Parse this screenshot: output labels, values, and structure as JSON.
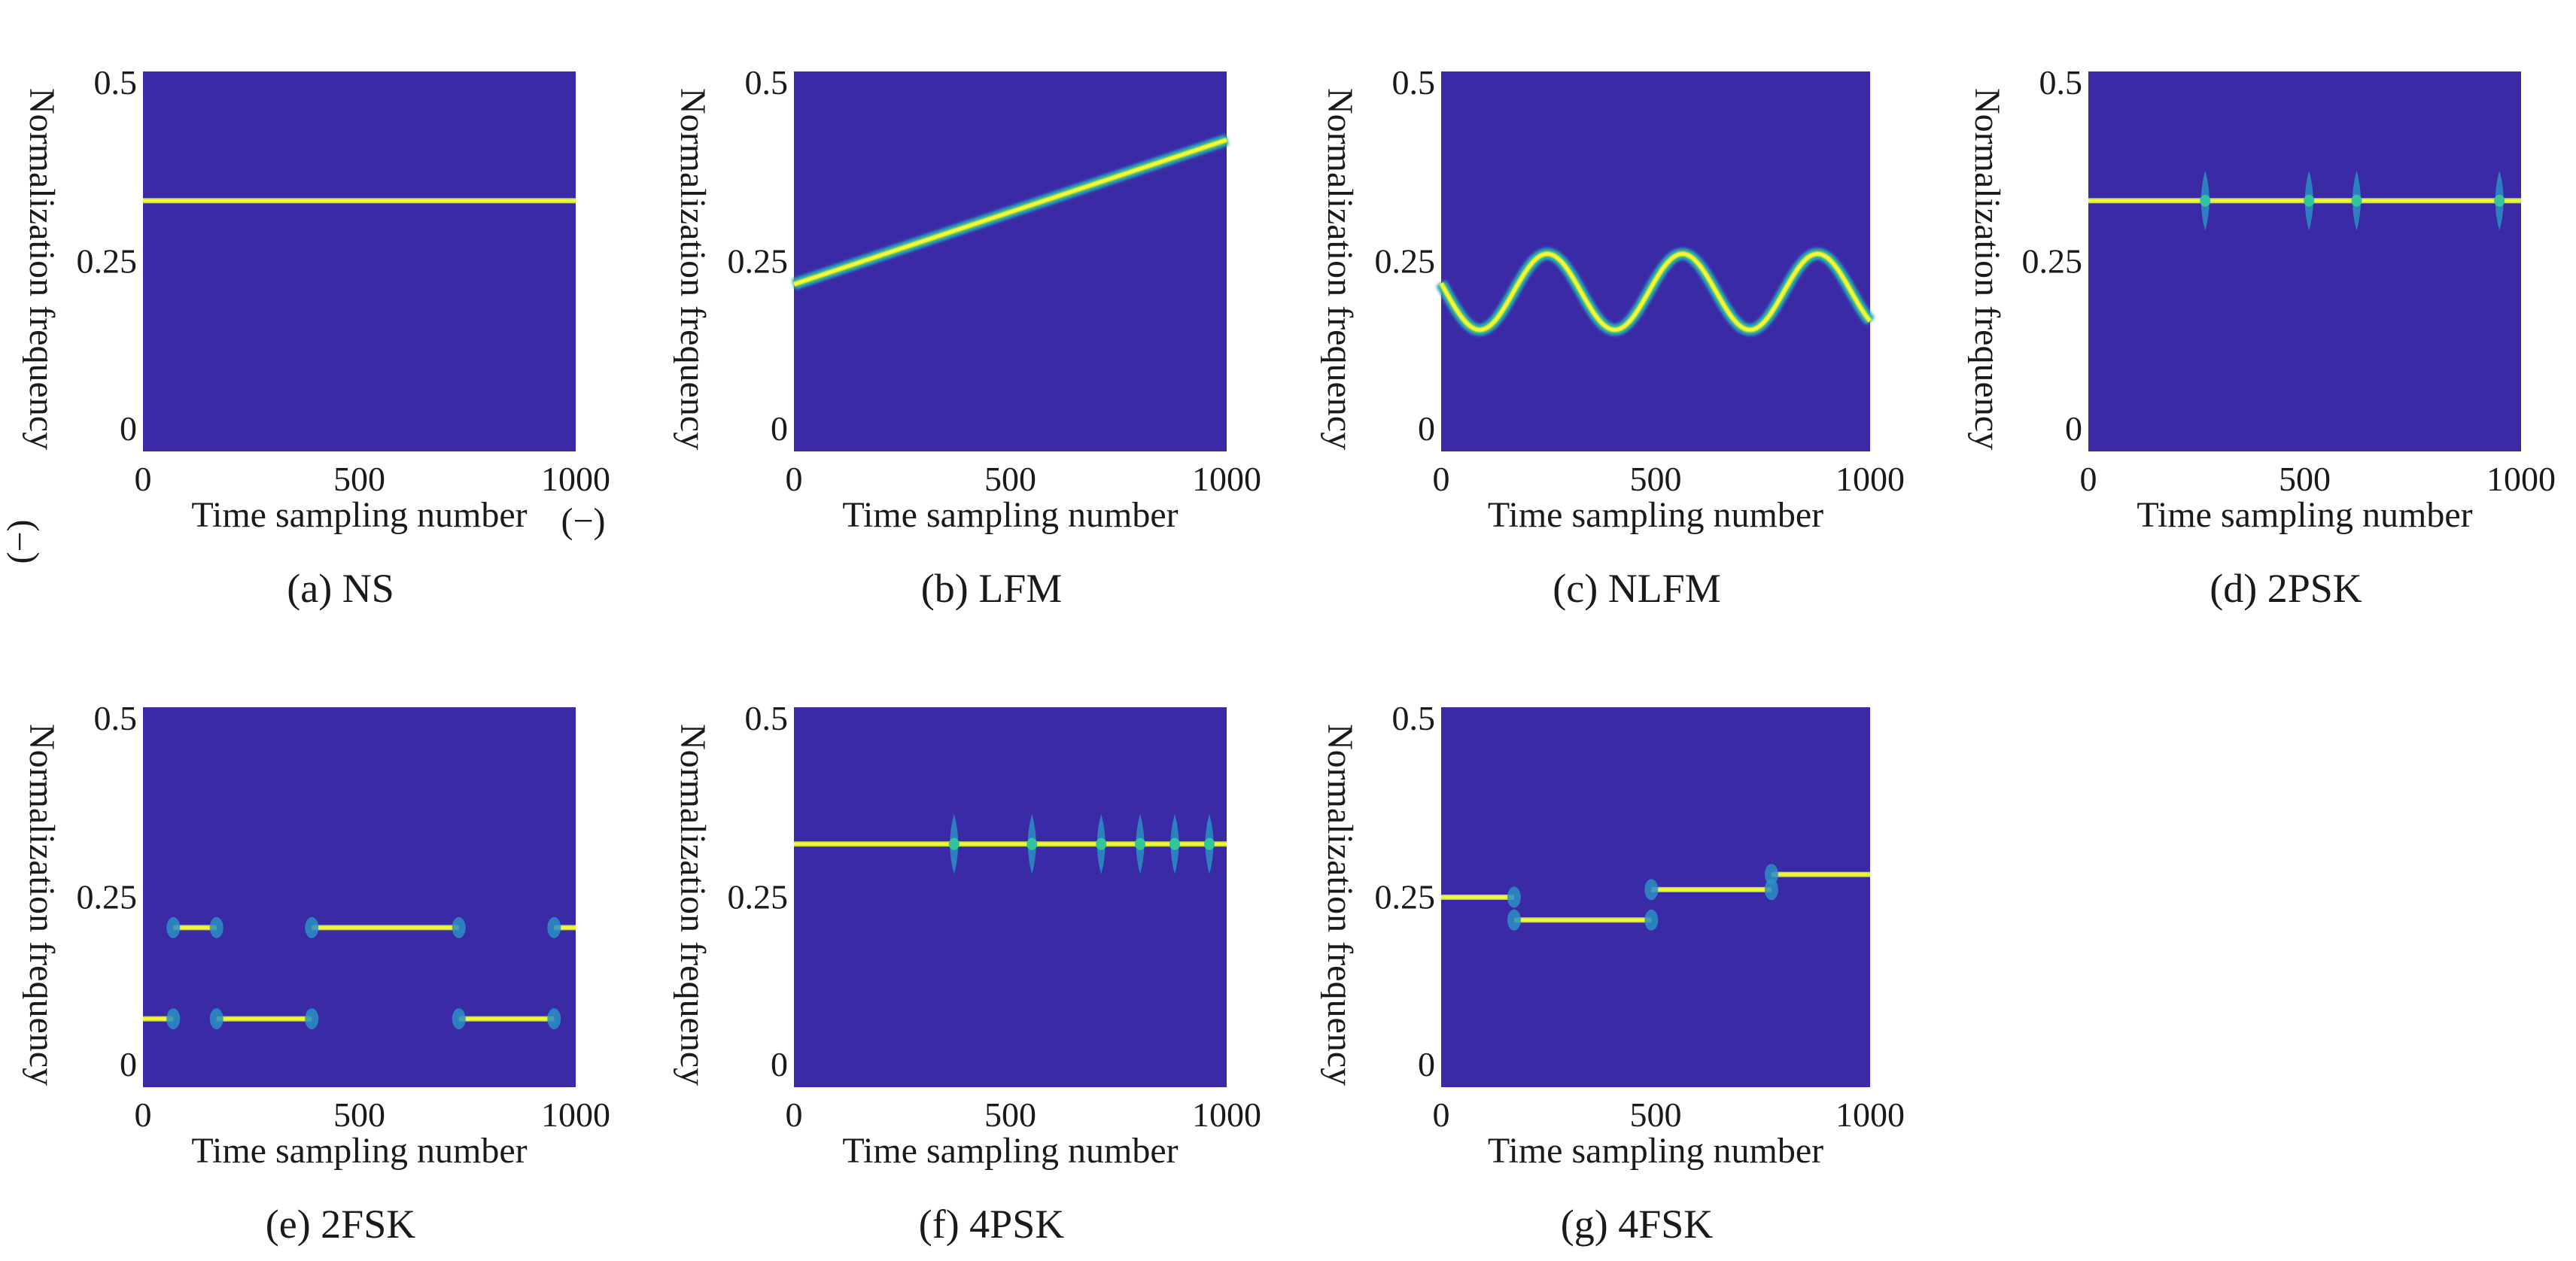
{
  "figure": {
    "panel_background": "#3b2aa6",
    "glow_colors": [
      "#2a8fc4",
      "#32c49a",
      "#b3e13c",
      "#f7f53a"
    ],
    "y_units_note": "(−)",
    "x_units_note": "(−)"
  },
  "chart_data": [
    {
      "type": "heatmap",
      "caption": "(a) NS",
      "xlabel": "Time sampling number",
      "ylabel": "Normalization frequency",
      "xlim": [
        0,
        1000
      ],
      "ylim": [
        0,
        0.5
      ],
      "xticks": [
        "0",
        "500",
        "1000"
      ],
      "yticks": [
        "0",
        "0.25",
        "0.5"
      ],
      "segments": [
        {
          "x0": 0,
          "x1": 1000,
          "y0": 0.33,
          "y1": 0.33
        }
      ],
      "phase_jumps": []
    },
    {
      "type": "heatmap",
      "caption": "(b) LFM",
      "xlabel": "Time sampling number",
      "ylabel": "Normalization frequency",
      "xlim": [
        0,
        1000
      ],
      "ylim": [
        0,
        0.5
      ],
      "xticks": [
        "0",
        "500",
        "1000"
      ],
      "yticks": [
        "0",
        "0.25",
        "0.5"
      ],
      "segments": [
        {
          "x0": 0,
          "x1": 1000,
          "y0": 0.22,
          "y1": 0.41
        }
      ],
      "phase_jumps": []
    },
    {
      "type": "heatmap",
      "caption": "(c) NLFM",
      "xlabel": "Time sampling number",
      "ylabel": "Normalization frequency",
      "xlim": [
        0,
        1000
      ],
      "ylim": [
        0,
        0.5
      ],
      "xticks": [
        "0",
        "500",
        "1000"
      ],
      "yticks": [
        "0",
        "0.25",
        "0.5"
      ],
      "sine": {
        "center": 0.21,
        "amplitude": 0.05,
        "period": 315,
        "phase_x": 90
      },
      "segments": [],
      "phase_jumps": []
    },
    {
      "type": "heatmap",
      "caption": "(d) 2PSK",
      "xlabel": "Time sampling number",
      "ylabel": "Normalization frequency",
      "xlim": [
        0,
        1000
      ],
      "ylim": [
        0,
        0.5
      ],
      "xticks": [
        "0",
        "500",
        "1000"
      ],
      "yticks": [
        "0",
        "0.25",
        "0.5"
      ],
      "segments": [
        {
          "x0": 0,
          "x1": 1000,
          "y0": 0.33,
          "y1": 0.33
        }
      ],
      "phase_jumps": [
        {
          "x": 270,
          "y": 0.33
        },
        {
          "x": 510,
          "y": 0.33
        },
        {
          "x": 620,
          "y": 0.33
        },
        {
          "x": 950,
          "y": 0.33
        }
      ]
    },
    {
      "type": "heatmap",
      "caption": "(e) 2FSK",
      "xlabel": "Time sampling number",
      "ylabel": "Normalization frequency",
      "xlim": [
        0,
        1000
      ],
      "ylim": [
        0,
        0.5
      ],
      "xticks": [
        "0",
        "500",
        "1000"
      ],
      "yticks": [
        "0",
        "0.25",
        "0.5"
      ],
      "segments": [
        {
          "x0": 0,
          "x1": 70,
          "y0": 0.09,
          "y1": 0.09
        },
        {
          "x0": 70,
          "x1": 170,
          "y0": 0.21,
          "y1": 0.21
        },
        {
          "x0": 170,
          "x1": 390,
          "y0": 0.09,
          "y1": 0.09
        },
        {
          "x0": 390,
          "x1": 730,
          "y0": 0.21,
          "y1": 0.21
        },
        {
          "x0": 730,
          "x1": 950,
          "y0": 0.09,
          "y1": 0.09
        },
        {
          "x0": 950,
          "x1": 1000,
          "y0": 0.21,
          "y1": 0.21
        }
      ],
      "phase_jumps": []
    },
    {
      "type": "heatmap",
      "caption": "(f) 4PSK",
      "xlabel": "Time sampling number",
      "ylabel": "Normalization frequency",
      "xlim": [
        0,
        1000
      ],
      "ylim": [
        0,
        0.5
      ],
      "xticks": [
        "0",
        "500",
        "1000"
      ],
      "yticks": [
        "0",
        "0.25",
        "0.5"
      ],
      "segments": [
        {
          "x0": 0,
          "x1": 1000,
          "y0": 0.32,
          "y1": 0.32
        }
      ],
      "phase_jumps": [
        {
          "x": 370,
          "y": 0.32
        },
        {
          "x": 550,
          "y": 0.32
        },
        {
          "x": 710,
          "y": 0.32
        },
        {
          "x": 800,
          "y": 0.32
        },
        {
          "x": 880,
          "y": 0.32
        },
        {
          "x": 960,
          "y": 0.32
        }
      ]
    },
    {
      "type": "heatmap",
      "caption": "(g) 4FSK",
      "xlabel": "Time sampling number",
      "ylabel": "Normalization frequency",
      "xlim": [
        0,
        1000
      ],
      "ylim": [
        0,
        0.5
      ],
      "xticks": [
        "0",
        "500",
        "1000"
      ],
      "yticks": [
        "0",
        "0.25",
        "0.5"
      ],
      "segments": [
        {
          "x0": 0,
          "x1": 170,
          "y0": 0.25,
          "y1": 0.25
        },
        {
          "x0": 170,
          "x1": 490,
          "y0": 0.22,
          "y1": 0.22
        },
        {
          "x0": 490,
          "x1": 770,
          "y0": 0.26,
          "y1": 0.26
        },
        {
          "x0": 770,
          "x1": 1000,
          "y0": 0.28,
          "y1": 0.28
        }
      ],
      "phase_jumps": []
    }
  ]
}
